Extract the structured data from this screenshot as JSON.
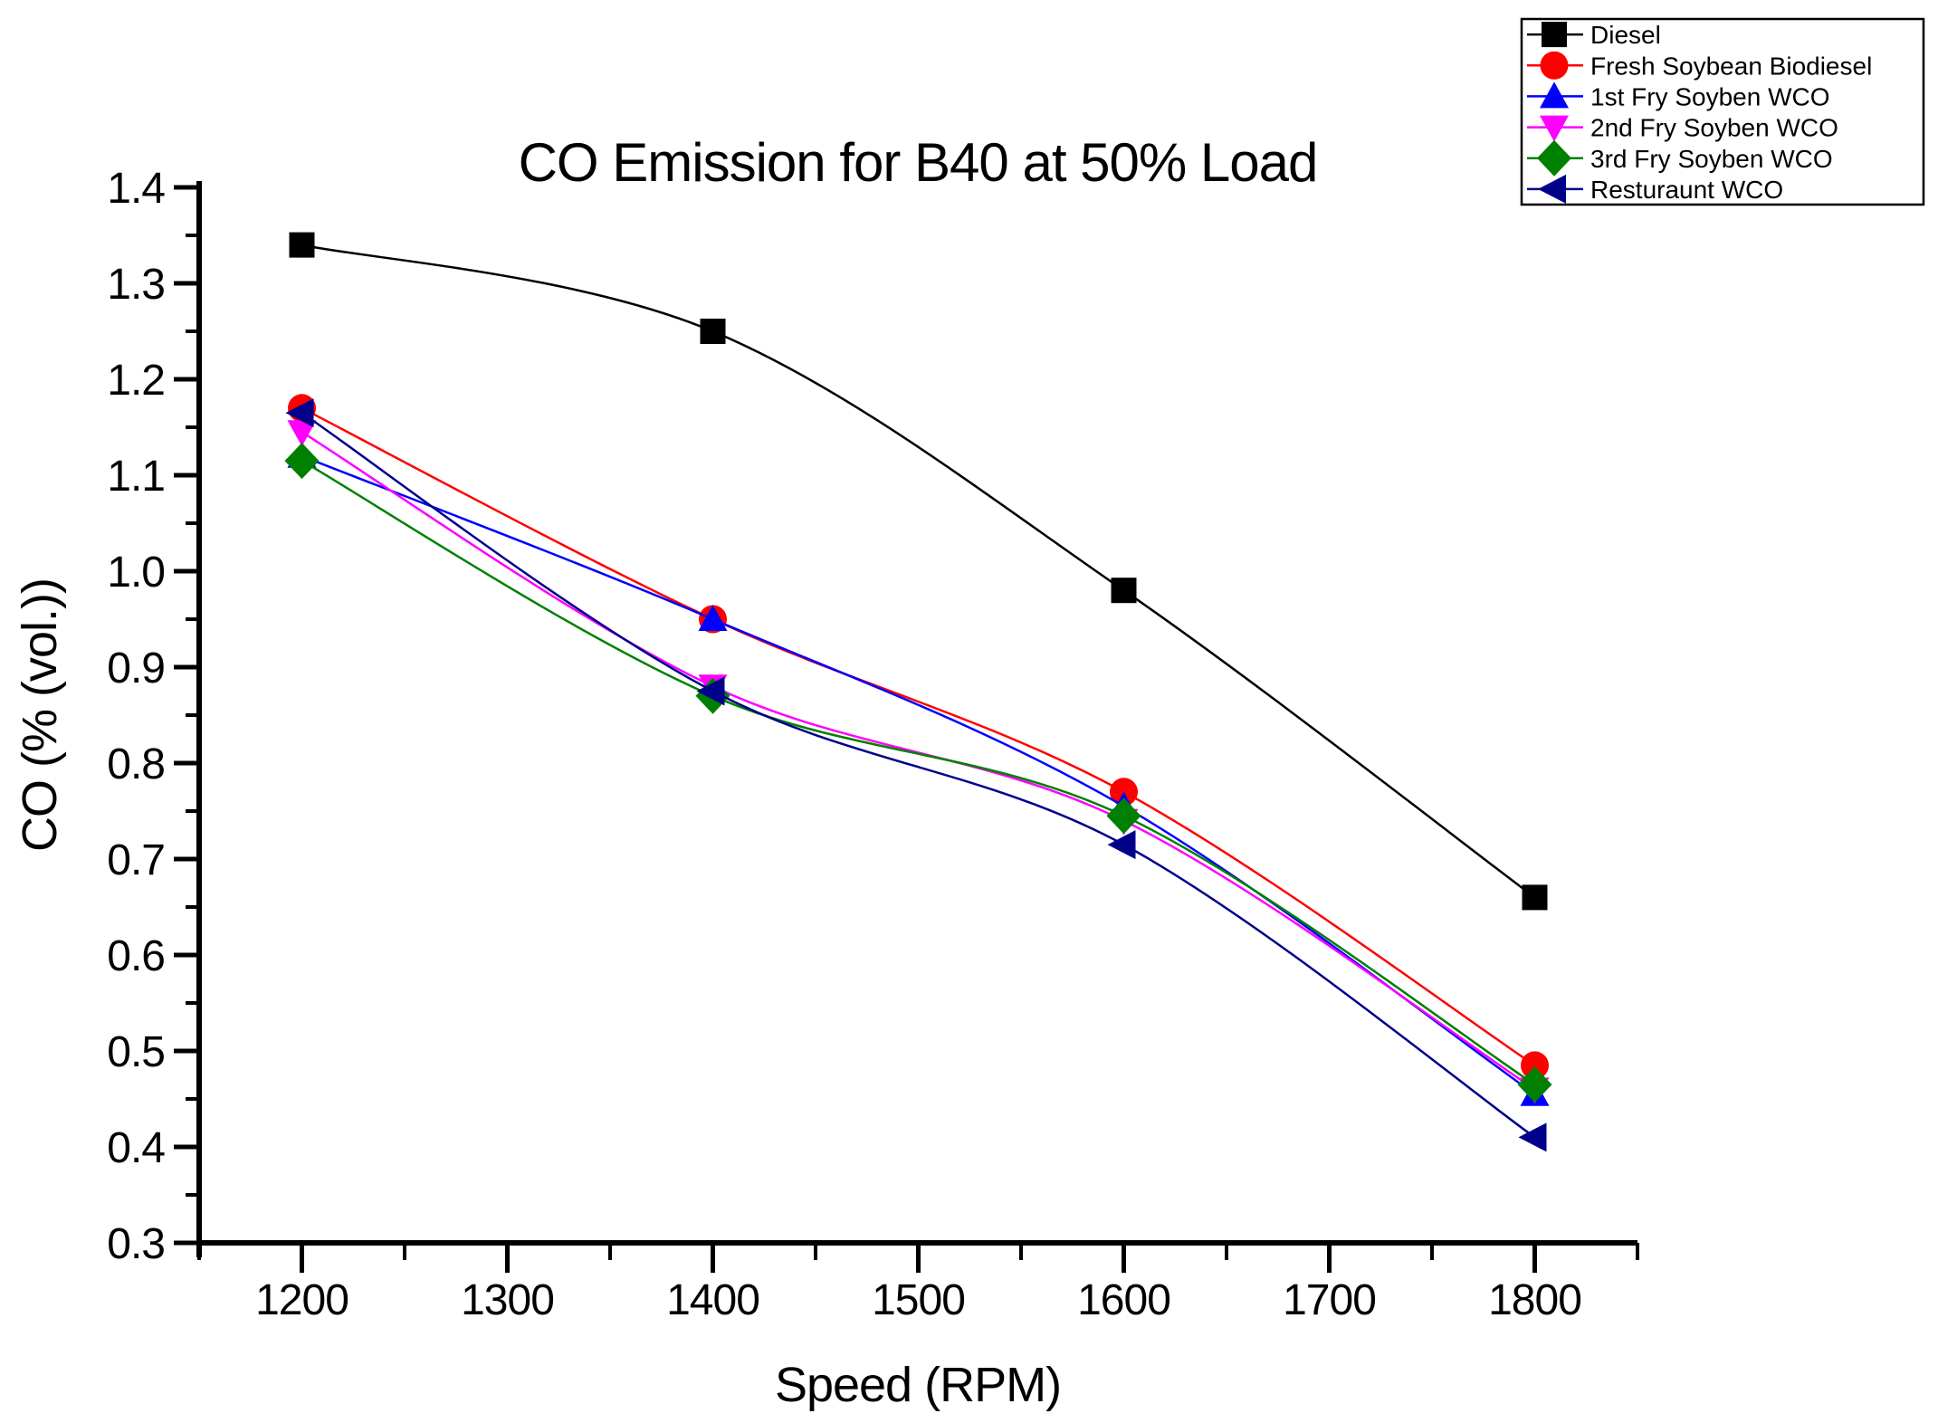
{
  "chart_data": {
    "type": "line",
    "title": "CO Emission for B40 at 50% Load",
    "xlabel": "Speed (RPM)",
    "ylabel": "CO (% (vol.))",
    "x": [
      1200,
      1400,
      1600,
      1800
    ],
    "xlim": [
      1150,
      1850
    ],
    "ylim": [
      0.3,
      1.4
    ],
    "grid": false,
    "legend_position": "top-right",
    "x_major_ticks": [
      1200,
      1300,
      1400,
      1500,
      1600,
      1700,
      1800
    ],
    "x_minor_ticks": [
      1150,
      1250,
      1350,
      1450,
      1550,
      1650,
      1750,
      1850
    ],
    "y_major_ticks": [
      0.3,
      0.4,
      0.5,
      0.6,
      0.7,
      0.8,
      0.9,
      1.0,
      1.1,
      1.2,
      1.3,
      1.4
    ],
    "y_minor_ticks": [
      0.35,
      0.45,
      0.55,
      0.65,
      0.75,
      0.85,
      0.95,
      1.05,
      1.15,
      1.25,
      1.35
    ],
    "series": [
      {
        "name": "Diesel",
        "color": "#000000",
        "marker": "square",
        "values": [
          1.34,
          1.25,
          0.98,
          0.66
        ]
      },
      {
        "name": "Fresh Soybean Biodiesel",
        "color": "#ff0000",
        "marker": "circle",
        "values": [
          1.17,
          0.95,
          0.77,
          0.485
        ]
      },
      {
        "name": "1st Fry Soyben WCO",
        "color": "#0000ff",
        "marker": "triangle-up",
        "values": [
          1.12,
          0.95,
          0.755,
          0.455
        ]
      },
      {
        "name": "2nd Fry Soyben WCO",
        "color": "#ff00ff",
        "marker": "triangle-down",
        "values": [
          1.145,
          0.88,
          0.74,
          0.46
        ]
      },
      {
        "name": "3rd Fry Soyben WCO",
        "color": "#008000",
        "marker": "diamond",
        "values": [
          1.115,
          0.87,
          0.745,
          0.465
        ]
      },
      {
        "name": "Resturaunt WCO",
        "color": "#00008b",
        "marker": "triangle-left",
        "values": [
          1.165,
          0.875,
          0.715,
          0.41
        ]
      }
    ]
  }
}
